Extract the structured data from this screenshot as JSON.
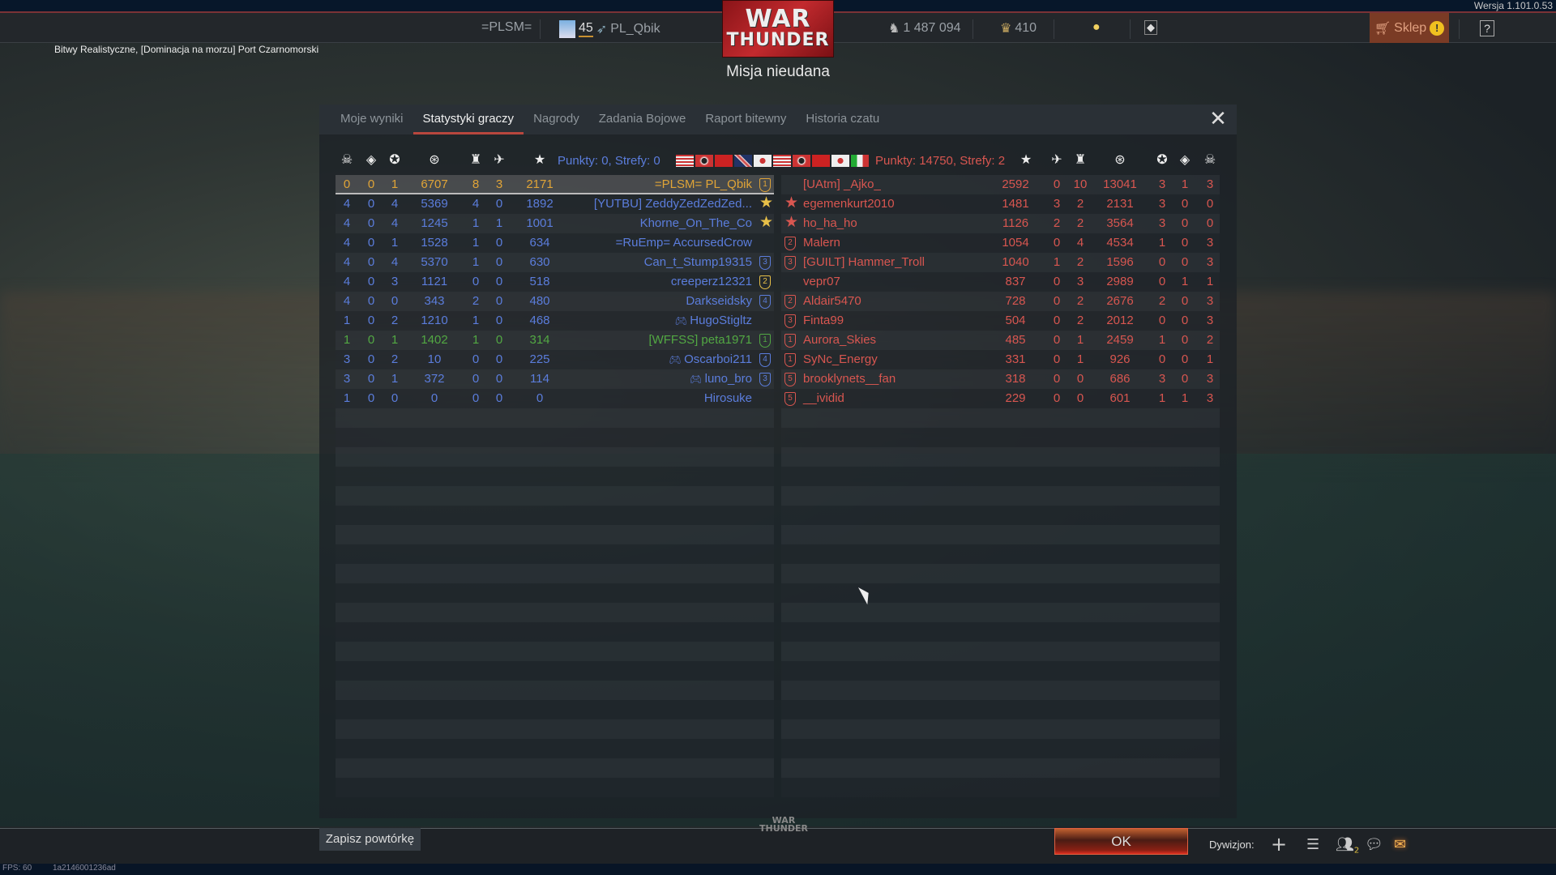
{
  "version": "Wersja 1.101.0.53",
  "topbar": {
    "squadron_tag": "=PLSM=",
    "level": "45",
    "nickname": "PL_Qbik",
    "silver_lions": "1 487 094",
    "golden_eagles": "410",
    "shop_label": "Sklep",
    "help_label": "?"
  },
  "logo": {
    "line1": "WAR",
    "line2": "THUNDER"
  },
  "mission_result": "Misja nieudana",
  "mission_info": "Bitwy Realistyczne, [Dominacja na morzu] Port Czarnomorski",
  "tabs": [
    {
      "label": "Moje wyniki"
    },
    {
      "label": "Statystyki graczy",
      "active": true
    },
    {
      "label": "Nagrody"
    },
    {
      "label": "Zadania Bojowe"
    },
    {
      "label": "Raport bitewny"
    },
    {
      "label": "Historia czatu"
    }
  ],
  "colors": {
    "ally": "#5b7ddc",
    "self": "#e0a437",
    "squad": "#52a843",
    "enemy": "#d85650",
    "gold": "#e8c048"
  },
  "left_team": {
    "summary": "Punkty: 0, Strefy: 0",
    "flags": [
      "usa",
      "germany",
      "ussr",
      "uk",
      "japan"
    ],
    "columns": [
      "deaths-icon",
      "captures-icon",
      "assists-icon",
      "naval-score-icon",
      "ship-kills-icon",
      "air-kills-icon",
      "score-icon"
    ],
    "rows": [
      {
        "stats": [
          "0",
          "0",
          "1",
          "6707",
          "8",
          "3",
          "2171"
        ],
        "name": "=PLSM= PL_Qbik",
        "type": "self",
        "badge": "1"
      },
      {
        "stats": [
          "4",
          "0",
          "4",
          "5369",
          "4",
          "0",
          "1892"
        ],
        "name": "[YUTBU] ZeddyZedZedZed...",
        "badge": "star"
      },
      {
        "stats": [
          "4",
          "0",
          "4",
          "1245",
          "1",
          "1",
          "1001"
        ],
        "name": "Khorne_On_The_Co",
        "badge": "star"
      },
      {
        "stats": [
          "4",
          "0",
          "1",
          "1528",
          "1",
          "0",
          "634"
        ],
        "name": "=RuEmp= AccursedCrow",
        "badge": ""
      },
      {
        "stats": [
          "4",
          "0",
          "4",
          "5370",
          "1",
          "0",
          "630"
        ],
        "name": "Can_t_Stump19315",
        "badge": "3"
      },
      {
        "stats": [
          "4",
          "0",
          "3",
          "1121",
          "0",
          "0",
          "518"
        ],
        "name": "creeperz12321",
        "badge": "2g"
      },
      {
        "stats": [
          "4",
          "0",
          "0",
          "343",
          "2",
          "0",
          "480"
        ],
        "name": "Darkseidsky",
        "badge": "4"
      },
      {
        "stats": [
          "1",
          "0",
          "2",
          "1210",
          "1",
          "0",
          "468"
        ],
        "name": "HugoStigltz",
        "badge": "",
        "gamepad": true
      },
      {
        "stats": [
          "1",
          "0",
          "1",
          "1402",
          "1",
          "0",
          "314"
        ],
        "name": "[WFFSS] peta1971",
        "type": "squad",
        "badge": "1"
      },
      {
        "stats": [
          "3",
          "0",
          "2",
          "10",
          "0",
          "0",
          "225"
        ],
        "name": "Oscarboi211",
        "badge": "4",
        "gamepad": true
      },
      {
        "stats": [
          "3",
          "0",
          "1",
          "372",
          "0",
          "0",
          "114"
        ],
        "name": "luno_bro",
        "badge": "3",
        "gamepad": true
      },
      {
        "stats": [
          "1",
          "0",
          "0",
          "0",
          "0",
          "0",
          "0"
        ],
        "name": "Hirosuke",
        "badge": ""
      }
    ]
  },
  "right_team": {
    "summary": "Punkty: 14750, Strefy: 2",
    "flags": [
      "usa",
      "germany",
      "ussr",
      "japan",
      "italy"
    ],
    "columns": [
      "score-icon",
      "air-kills-icon",
      "ship-kills-icon",
      "naval-score-icon",
      "assists-icon",
      "captures-icon",
      "deaths-icon"
    ],
    "rows": [
      {
        "name": "[UAtm] _Ajko_",
        "badge": "",
        "stats": [
          "2592",
          "0",
          "10",
          "13041",
          "3",
          "1",
          "3"
        ]
      },
      {
        "name": "egemenkurt2010",
        "badge": "star",
        "stats": [
          "1481",
          "3",
          "2",
          "2131",
          "3",
          "0",
          "0"
        ]
      },
      {
        "name": "ho_ha_ho",
        "badge": "star",
        "stats": [
          "1126",
          "2",
          "2",
          "3564",
          "3",
          "0",
          "0"
        ]
      },
      {
        "name": "Malern",
        "badge": "2",
        "stats": [
          "1054",
          "0",
          "4",
          "4534",
          "1",
          "0",
          "3"
        ]
      },
      {
        "name": "[GUILT] Hammer_Troll",
        "badge": "3",
        "stats": [
          "1040",
          "1",
          "2",
          "1596",
          "0",
          "0",
          "3"
        ]
      },
      {
        "name": "vepr07",
        "badge": "",
        "stats": [
          "837",
          "0",
          "3",
          "2989",
          "0",
          "1",
          "1"
        ]
      },
      {
        "name": "Aldair5470",
        "badge": "2",
        "stats": [
          "728",
          "0",
          "2",
          "2676",
          "2",
          "0",
          "3"
        ]
      },
      {
        "name": "Finta99",
        "badge": "3",
        "stats": [
          "504",
          "0",
          "2",
          "2012",
          "0",
          "0",
          "3"
        ]
      },
      {
        "name": "Aurora_Skies",
        "badge": "1",
        "stats": [
          "485",
          "0",
          "1",
          "2459",
          "1",
          "0",
          "2"
        ]
      },
      {
        "name": "SyNc_Energy",
        "badge": "1",
        "stats": [
          "331",
          "0",
          "1",
          "926",
          "0",
          "0",
          "1"
        ]
      },
      {
        "name": "brooklynets__fan",
        "badge": "5",
        "stats": [
          "318",
          "0",
          "0",
          "686",
          "3",
          "0",
          "3"
        ]
      },
      {
        "name": "__ividid",
        "badge": "5",
        "stats": [
          "229",
          "0",
          "0",
          "601",
          "1",
          "1",
          "3"
        ]
      }
    ]
  },
  "bottom": {
    "save_replay": "Zapisz powtórkę",
    "ok": "OK",
    "squadron_label": "Dywizjon:",
    "contacts_count": "2"
  },
  "footer": {
    "fps": "FPS: 60",
    "session_id": "1a2146001236ad"
  }
}
